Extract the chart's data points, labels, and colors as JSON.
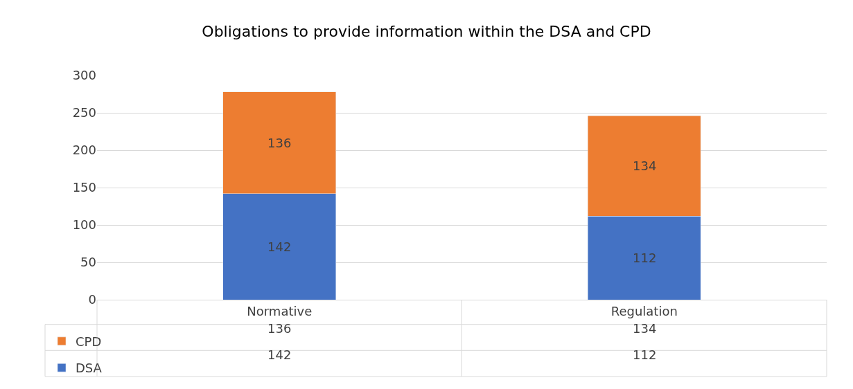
{
  "chart_data": {
    "type": "bar",
    "title": "Obligations to provide information within the DSA and CPD",
    "categories": [
      "Normative",
      "Regulation"
    ],
    "series": [
      {
        "name": "DSA",
        "color": "#4472c4",
        "values": [
          142,
          112
        ],
        "value_labels": [
          "142",
          "112"
        ]
      },
      {
        "name": "CPD",
        "color": "#ed7d31",
        "values": [
          136,
          134
        ],
        "value_labels": [
          "136",
          "134"
        ]
      }
    ],
    "stacked": true,
    "ylim": [
      0,
      300
    ],
    "yticks": [
      0,
      50,
      100,
      150,
      200,
      250,
      300
    ],
    "grid": "y",
    "legend": "bottom left",
    "annotations": [
      "136",
      "134",
      "142",
      "112"
    ]
  }
}
